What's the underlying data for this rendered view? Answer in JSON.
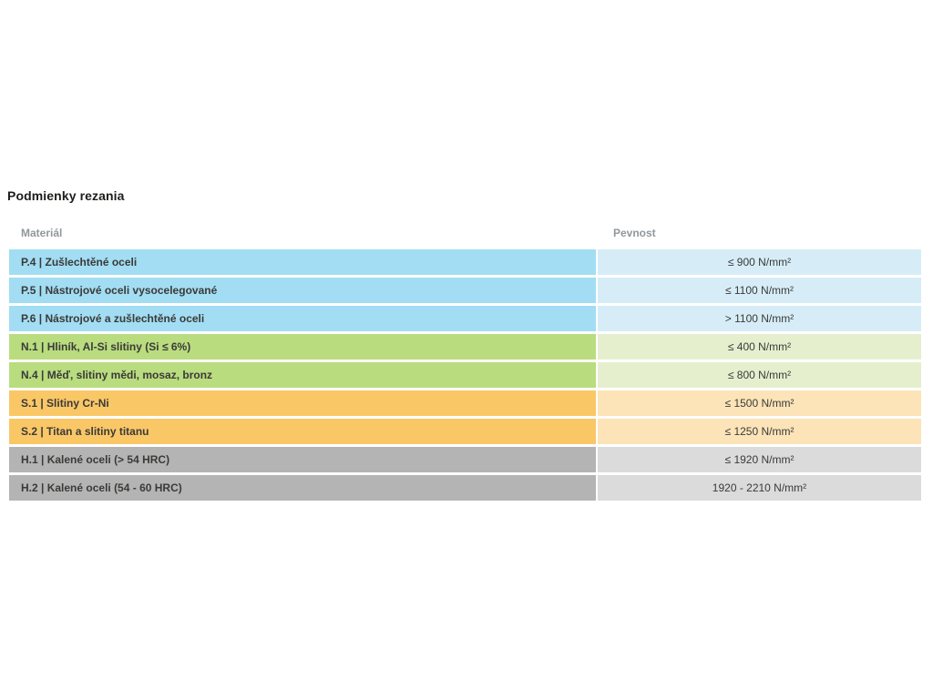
{
  "page": {
    "title": "Podmienky rezania"
  },
  "table": {
    "columns": [
      "Materiál",
      "Pevnost"
    ],
    "rows": [
      {
        "group": "P",
        "material": "P.4 | Zušlechtěné oceli",
        "pevnost": "≤ 900 N/mm²"
      },
      {
        "group": "P",
        "material": "P.5 | Nástrojové oceli vysocelegované",
        "pevnost": "≤ 1100 N/mm²"
      },
      {
        "group": "P",
        "material": "P.6 | Nástrojové a zušlechtěné oceli",
        "pevnost": "> 1100 N/mm²"
      },
      {
        "group": "N",
        "material": "N.1 | Hliník, Al-Si slitiny (Si ≤ 6%)",
        "pevnost": "≤ 400 N/mm²"
      },
      {
        "group": "N",
        "material": "N.4 | Měď, slitiny mědi, mosaz, bronz",
        "pevnost": "≤ 800 N/mm²"
      },
      {
        "group": "S",
        "material": "S.1 | Slitiny Cr-Ni",
        "pevnost": "≤ 1500 N/mm²"
      },
      {
        "group": "S",
        "material": "S.2 | Titan a slitiny titanu",
        "pevnost": "≤ 1250 N/mm²"
      },
      {
        "group": "H",
        "material": "H.1 | Kalené oceli (> 54 HRC)",
        "pevnost": "≤ 1920 N/mm²"
      },
      {
        "group": "H",
        "material": "H.2 | Kalené oceli (54 - 60 HRC)",
        "pevnost": "1920 - 2210 N/mm²"
      }
    ]
  },
  "colors": {
    "P": {
      "left": "#a2ddf3",
      "right": "#d6edf8"
    },
    "N": {
      "left": "#b9dc7f",
      "right": "#e5efce"
    },
    "S": {
      "left": "#fac767",
      "right": "#fce4b8"
    },
    "H": {
      "left": "#b4b4b4",
      "right": "#dbdbdb"
    },
    "cell_text": "#3a3a38"
  }
}
